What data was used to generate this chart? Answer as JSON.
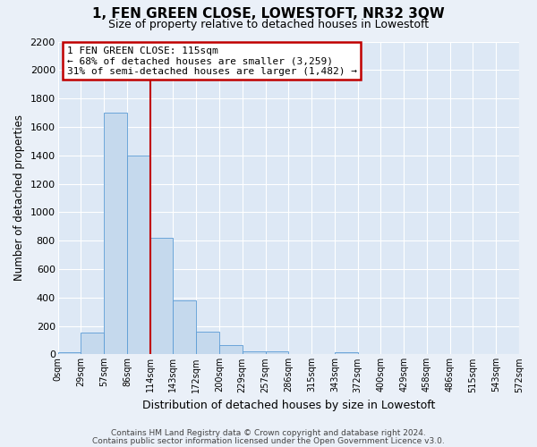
{
  "title": "1, FEN GREEN CLOSE, LOWESTOFT, NR32 3QW",
  "subtitle": "Size of property relative to detached houses in Lowestoft",
  "xlabel": "Distribution of detached houses by size in Lowestoft",
  "ylabel": "Number of detached properties",
  "bin_labels": [
    "0sqm",
    "29sqm",
    "57sqm",
    "86sqm",
    "114sqm",
    "143sqm",
    "172sqm",
    "200sqm",
    "229sqm",
    "257sqm",
    "286sqm",
    "315sqm",
    "343sqm",
    "372sqm",
    "400sqm",
    "429sqm",
    "458sqm",
    "486sqm",
    "515sqm",
    "543sqm",
    "572sqm"
  ],
  "bar_values": [
    15,
    155,
    1700,
    1400,
    820,
    380,
    160,
    65,
    20,
    20,
    0,
    0,
    15,
    0,
    0,
    0,
    0,
    0,
    0,
    0
  ],
  "bar_color": "#c5d9ed",
  "bar_edge_color": "#5b9bd5",
  "vline_x": 4,
  "vline_color": "#c00000",
  "annotation_text": "1 FEN GREEN CLOSE: 115sqm\n← 68% of detached houses are smaller (3,259)\n31% of semi-detached houses are larger (1,482) →",
  "annotation_box_color": "#ffffff",
  "annotation_box_edge_color": "#c00000",
  "ylim": [
    0,
    2200
  ],
  "yticks": [
    0,
    200,
    400,
    600,
    800,
    1000,
    1200,
    1400,
    1600,
    1800,
    2000,
    2200
  ],
  "footer_line1": "Contains HM Land Registry data © Crown copyright and database right 2024.",
  "footer_line2": "Contains public sector information licensed under the Open Government Licence v3.0.",
  "fig_bg_color": "#eaf0f8",
  "plot_bg_color": "#dde8f5"
}
